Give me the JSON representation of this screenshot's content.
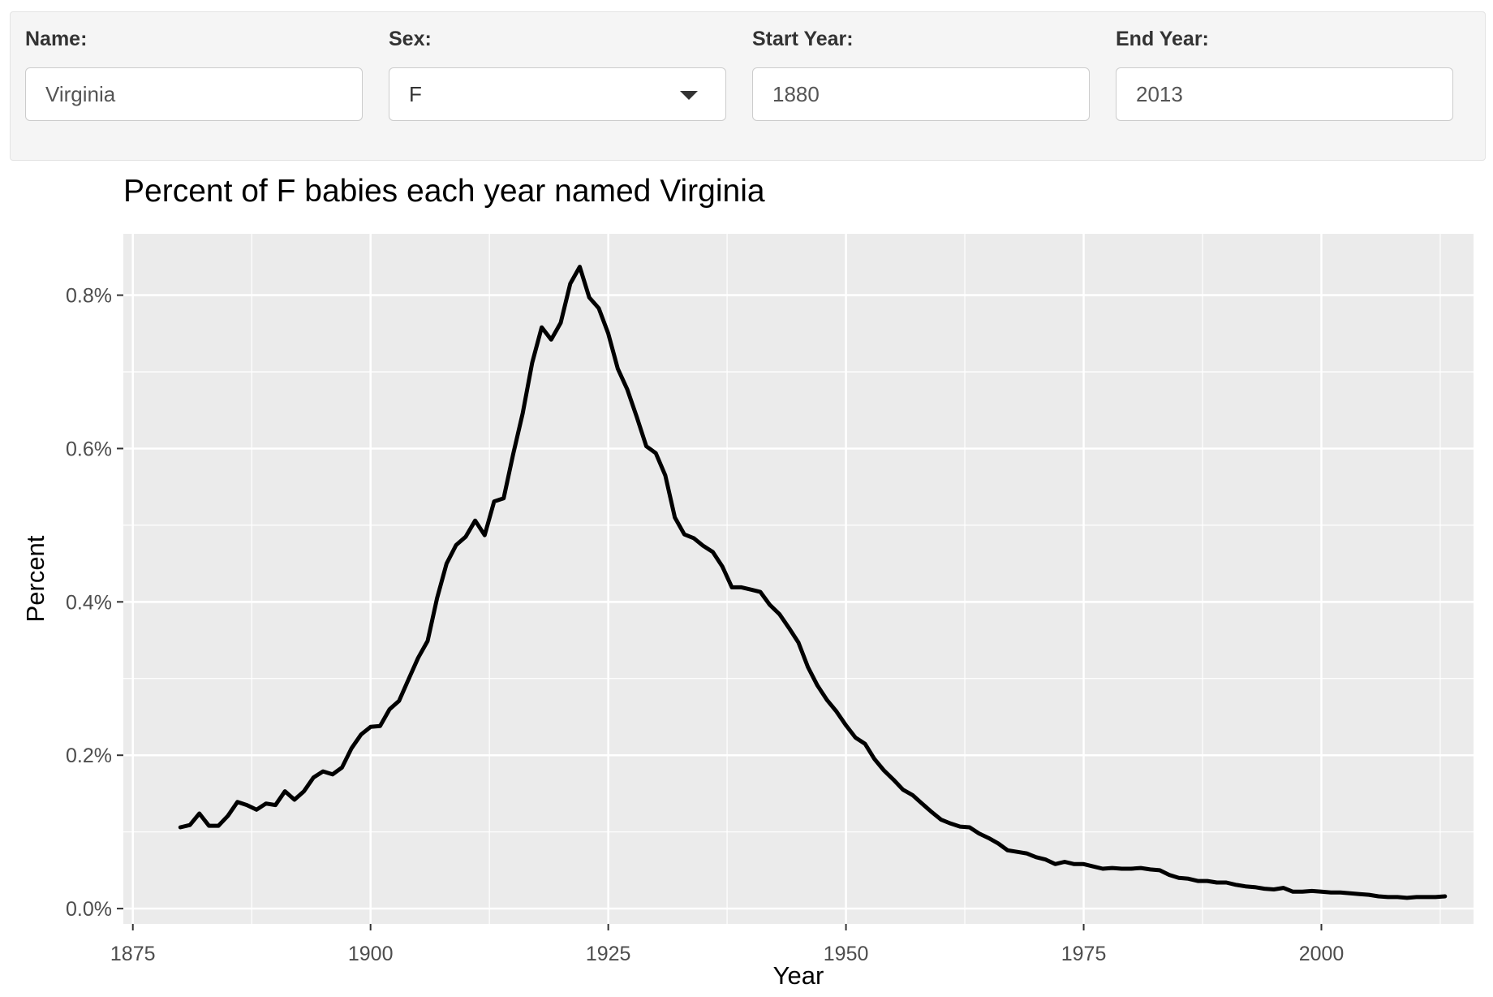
{
  "controls": {
    "name": {
      "label": "Name:",
      "value": "Virginia"
    },
    "sex": {
      "label": "Sex:",
      "value": "F"
    },
    "start_year": {
      "label": "Start Year:",
      "value": "1880"
    },
    "end_year": {
      "label": "End Year:",
      "value": "2013"
    }
  },
  "chart_data": {
    "type": "line",
    "title": "Percent of F babies each year named Virginia",
    "xlabel": "Year",
    "ylabel": "Percent",
    "xlim": [
      1874,
      2016
    ],
    "ylim": [
      -0.0002,
      0.0088
    ],
    "x_ticks": [
      1875,
      1900,
      1925,
      1950,
      1975,
      2000
    ],
    "x_tick_labels": [
      "1875",
      "1900",
      "1925",
      "1950",
      "1975",
      "2000"
    ],
    "y_ticks": [
      0,
      0.002,
      0.004,
      0.006,
      0.008
    ],
    "y_tick_labels": [
      "0.0%",
      "0.2%",
      "0.4%",
      "0.6%",
      "0.8%"
    ],
    "grid": true,
    "background": "#ebebeb",
    "line_color": "#000000",
    "series": [
      {
        "x": [
          1880,
          1881,
          1882,
          1883,
          1884,
          1885,
          1886,
          1887,
          1888,
          1889,
          1890,
          1891,
          1892,
          1893,
          1894,
          1895,
          1896,
          1897,
          1898,
          1899,
          1900,
          1901,
          1902,
          1903,
          1904,
          1905,
          1906,
          1907,
          1908,
          1909,
          1910,
          1911,
          1912,
          1913,
          1914,
          1915,
          1916,
          1917,
          1918,
          1919,
          1920,
          1921,
          1922,
          1923,
          1924,
          1925,
          1926,
          1927,
          1928,
          1929,
          1930,
          1931,
          1932,
          1933,
          1934,
          1935,
          1936,
          1937,
          1938,
          1939,
          1940,
          1941,
          1942,
          1943,
          1944,
          1945,
          1946,
          1947,
          1948,
          1949,
          1950,
          1951,
          1952,
          1953,
          1954,
          1955,
          1956,
          1957,
          1958,
          1959,
          1960,
          1961,
          1962,
          1963,
          1964,
          1965,
          1966,
          1967,
          1968,
          1969,
          1970,
          1971,
          1972,
          1973,
          1974,
          1975,
          1976,
          1977,
          1978,
          1979,
          1980,
          1981,
          1982,
          1983,
          1984,
          1985,
          1986,
          1987,
          1988,
          1989,
          1990,
          1991,
          1992,
          1993,
          1994,
          1995,
          1996,
          1997,
          1998,
          1999,
          2000,
          2001,
          2002,
          2003,
          2004,
          2005,
          2006,
          2007,
          2008,
          2009,
          2010,
          2011,
          2012,
          2013
        ],
        "values": [
          0.00106,
          0.00109,
          0.00124,
          0.00108,
          0.00108,
          0.00121,
          0.00139,
          0.00135,
          0.00129,
          0.00137,
          0.00135,
          0.00153,
          0.00142,
          0.00153,
          0.00171,
          0.00179,
          0.00175,
          0.00184,
          0.00209,
          0.00227,
          0.00237,
          0.00238,
          0.0026,
          0.00271,
          0.00299,
          0.00327,
          0.00349,
          0.00405,
          0.0045,
          0.00474,
          0.00485,
          0.00506,
          0.00487,
          0.00531,
          0.00535,
          0.00593,
          0.00646,
          0.00712,
          0.00758,
          0.00742,
          0.00764,
          0.00815,
          0.00837,
          0.00797,
          0.00783,
          0.0075,
          0.00704,
          0.00677,
          0.00641,
          0.00603,
          0.00594,
          0.00565,
          0.0051,
          0.00488,
          0.00483,
          0.00473,
          0.00465,
          0.00446,
          0.00419,
          0.00419,
          0.00416,
          0.00413,
          0.00396,
          0.00384,
          0.00366,
          0.00347,
          0.00315,
          0.00291,
          0.00272,
          0.00257,
          0.00239,
          0.00223,
          0.00215,
          0.00195,
          0.0018,
          0.00168,
          0.00155,
          0.00148,
          0.00137,
          0.00126,
          0.00116,
          0.00111,
          0.00107,
          0.00106,
          0.00098,
          0.00092,
          0.00085,
          0.00076,
          0.00074,
          0.00072,
          0.00067,
          0.00064,
          0.00058,
          0.00061,
          0.00058,
          0.00058,
          0.00055,
          0.00052,
          0.00053,
          0.00052,
          0.00052,
          0.00053,
          0.00051,
          0.0005,
          0.00044,
          0.0004,
          0.00039,
          0.00036,
          0.00036,
          0.00034,
          0.00034,
          0.00031,
          0.00029,
          0.00028,
          0.00026,
          0.00025,
          0.00027,
          0.00022,
          0.00022,
          0.00023,
          0.00022,
          0.00021,
          0.00021,
          0.0002,
          0.00019,
          0.00018,
          0.00016,
          0.00015,
          0.00015,
          0.00014,
          0.00015,
          0.00015,
          0.00015,
          0.00016
        ]
      }
    ]
  }
}
